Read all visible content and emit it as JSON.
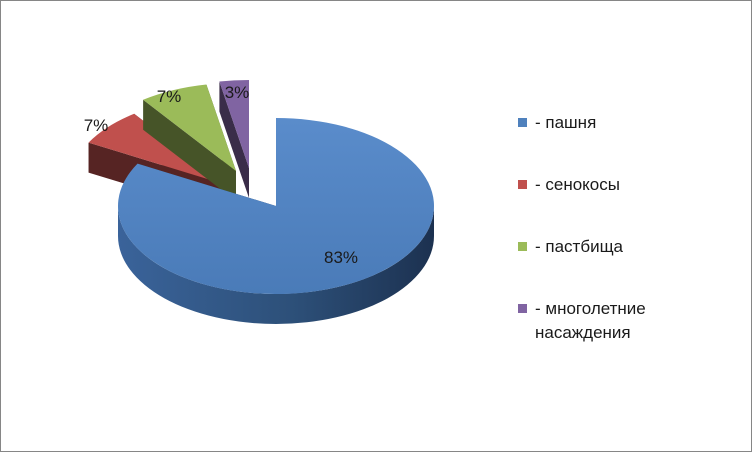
{
  "chart_data": {
    "type": "pie",
    "style": "3d-exploded",
    "categories": [
      "- пашня",
      "- сенокосы",
      "- пастбища",
      "- многолетние насаждения"
    ],
    "values": [
      83,
      7,
      7,
      3
    ],
    "data_labels": [
      "83%",
      "7%",
      "7%",
      "3%"
    ],
    "colors": [
      "#4F81BD",
      "#C0504D",
      "#9BBB59",
      "#8064A2"
    ],
    "legend_position": "right"
  }
}
